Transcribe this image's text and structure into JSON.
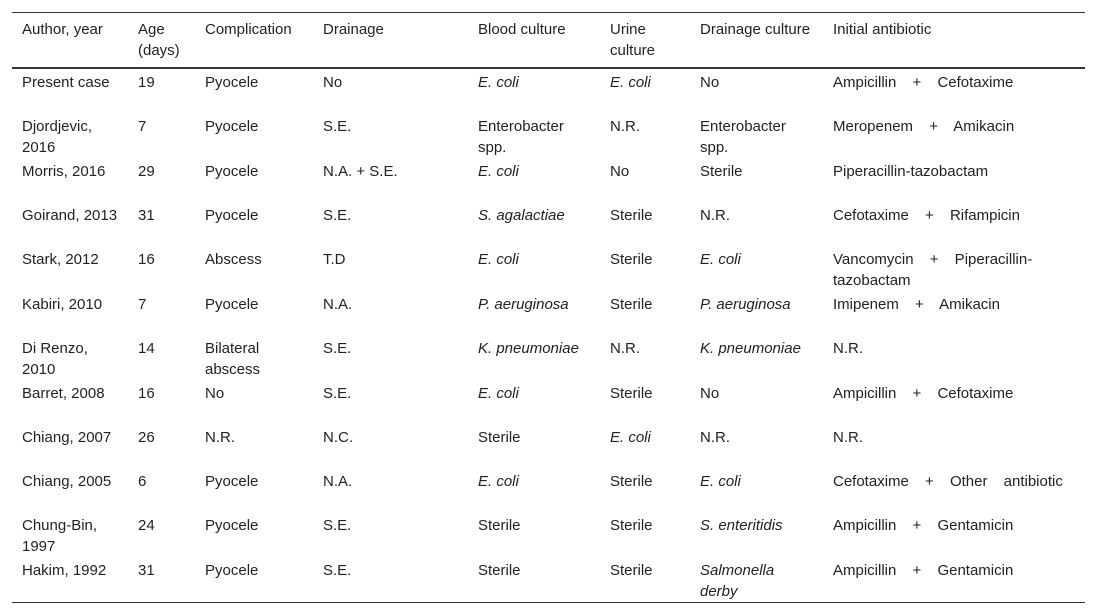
{
  "table": {
    "header": [
      "Author, year",
      "Age (days)",
      "Complication",
      "Drainage",
      "Blood culture",
      "Urine culture",
      "Drainage culture",
      "Initial antibiotic"
    ],
    "rows": [
      [
        "Present case",
        19,
        "Pyocele",
        "No",
        {
          "text": "E. coli",
          "italic": true
        },
        {
          "text": "E. coli",
          "italic": true
        },
        "No",
        "Ampicillin + Cefotaxime"
      ],
      [
        "Djordjevic, 2016",
        7,
        "Pyocele",
        "S.E.",
        "Enterobacter spp.",
        "N.R.",
        "Enterobacter spp.",
        "Meropenem + Amikacin"
      ],
      [
        "Morris, 2016",
        29,
        "Pyocele",
        "N.A. + S.E.",
        {
          "text": "E. coli",
          "italic": true
        },
        "No",
        "Sterile",
        "Piperacillin-tazobactam"
      ],
      [
        "Goirand, 2013",
        31,
        "Pyocele",
        "S.E.",
        {
          "text": "S. agalactiae",
          "italic": true
        },
        "Sterile",
        "N.R.",
        "Cefotaxime + Rifampicin"
      ],
      [
        "Stark, 2012",
        16,
        "Abscess",
        "T.D",
        {
          "text": "E. coli",
          "italic": true
        },
        "Sterile",
        {
          "text": "E. coli",
          "italic": true
        },
        "Vancomycin + Piperacillin-tazobactam"
      ],
      [
        "Kabiri, 2010",
        7,
        "Pyocele",
        "N.A.",
        {
          "text": "P. aeruginosa",
          "italic": true
        },
        "Sterile",
        {
          "text": "P. aeruginosa",
          "italic": true
        },
        "Imipenem + Amikacin"
      ],
      [
        "Di Renzo, 2010",
        14,
        "Bilateral abscess",
        "S.E.",
        {
          "text": "K. pneumoniae",
          "italic": true
        },
        "N.R.",
        {
          "text": "K. pneumoniae",
          "italic": true
        },
        "N.R."
      ],
      [
        "Barret, 2008",
        16,
        "No",
        "S.E.",
        {
          "text": "E. coli",
          "italic": true
        },
        "Sterile",
        "No",
        "Ampicillin + Cefotaxime"
      ],
      [
        "Chiang, 2007",
        26,
        "N.R.",
        "N.C.",
        "Sterile",
        {
          "text": "E. coli",
          "italic": true
        },
        "N.R.",
        "N.R."
      ],
      [
        "Chiang, 2005",
        6,
        "Pyocele",
        "N.A.",
        {
          "text": "E. coli",
          "italic": true
        },
        "Sterile",
        {
          "text": "E. coli",
          "italic": true
        },
        "Cefotaxime + Other antibiotic"
      ],
      [
        "Chung-Bin, 1997",
        24,
        "Pyocele",
        "S.E.",
        "Sterile",
        "Sterile",
        {
          "text": "S. enteritidis",
          "italic": true
        },
        "Ampicillin + Gentamicin"
      ],
      [
        "Hakim, 1992",
        31,
        "Pyocele",
        "S.E.",
        "Sterile",
        "Sterile",
        {
          "text": "Salmonella derby",
          "italic": true
        },
        "Ampicillin + Gentamicin"
      ]
    ]
  }
}
